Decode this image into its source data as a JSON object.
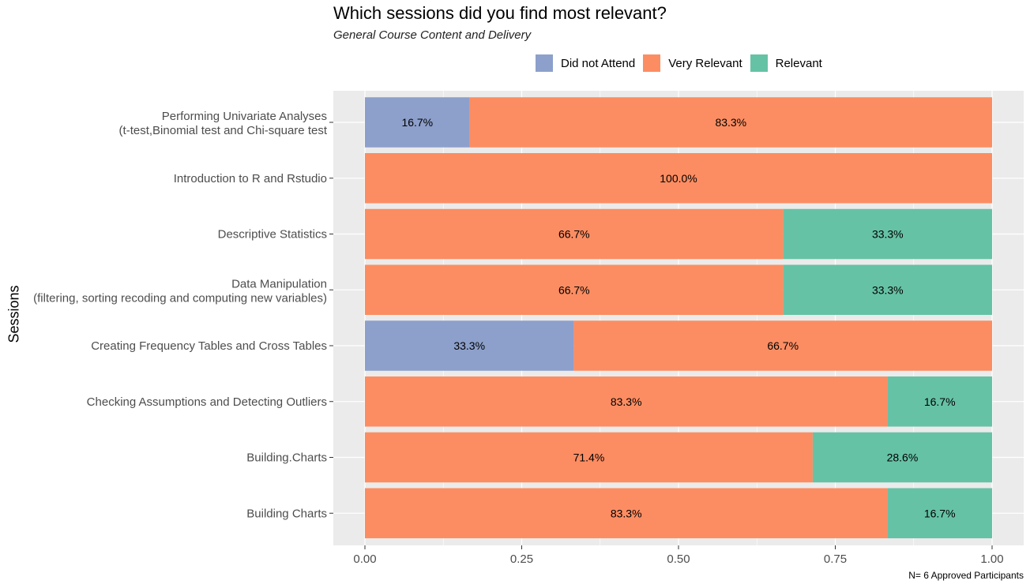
{
  "chart_data": {
    "type": "bar",
    "orientation": "horizontal",
    "stacked": true,
    "title": "Which sessions did you find most relevant?",
    "subtitle": "General Course Content and Delivery",
    "ylabel": "Sessions",
    "xlabel": "",
    "xlim": [
      0,
      1
    ],
    "x_ticks": [
      "0.00",
      "0.25",
      "0.50",
      "0.75",
      "1.00"
    ],
    "grid": true,
    "legend_position": "top",
    "caption": "N= 6 Approved Participants",
    "categories": [
      [
        "Performing Univariate Analyses",
        "(t-test,Binomial test and Chi-square test"
      ],
      [
        "Introduction to R and Rstudio"
      ],
      [
        "Descriptive Statistics"
      ],
      [
        "Data Manipulation",
        "(filtering, sorting recoding and computing new variables)"
      ],
      [
        "Creating Frequency Tables and Cross Tables"
      ],
      [
        "Checking Assumptions and Detecting Outliers"
      ],
      [
        "Building.Charts"
      ],
      [
        "Building Charts"
      ]
    ],
    "series": [
      {
        "name": "Did not Attend",
        "color": "#8DA0CB",
        "values": [
          0.167,
          0,
          0,
          0,
          0.333,
          0,
          0,
          0
        ],
        "labels": [
          "16.7%",
          "",
          "",
          "",
          "33.3%",
          "",
          "",
          ""
        ]
      },
      {
        "name": "Very Relevant",
        "color": "#FC8D62",
        "values": [
          0.833,
          1.0,
          0.667,
          0.667,
          0.667,
          0.833,
          0.714,
          0.833
        ],
        "labels": [
          "83.3%",
          "100.0%",
          "66.7%",
          "66.7%",
          "66.7%",
          "83.3%",
          "71.4%",
          "83.3%"
        ]
      },
      {
        "name": "Relevant",
        "color": "#66C2A5",
        "values": [
          0,
          0,
          0.333,
          0.333,
          0,
          0.167,
          0.286,
          0.167
        ],
        "labels": [
          "",
          "",
          "33.3%",
          "33.3%",
          "",
          "16.7%",
          "28.6%",
          "16.7%"
        ]
      }
    ]
  }
}
